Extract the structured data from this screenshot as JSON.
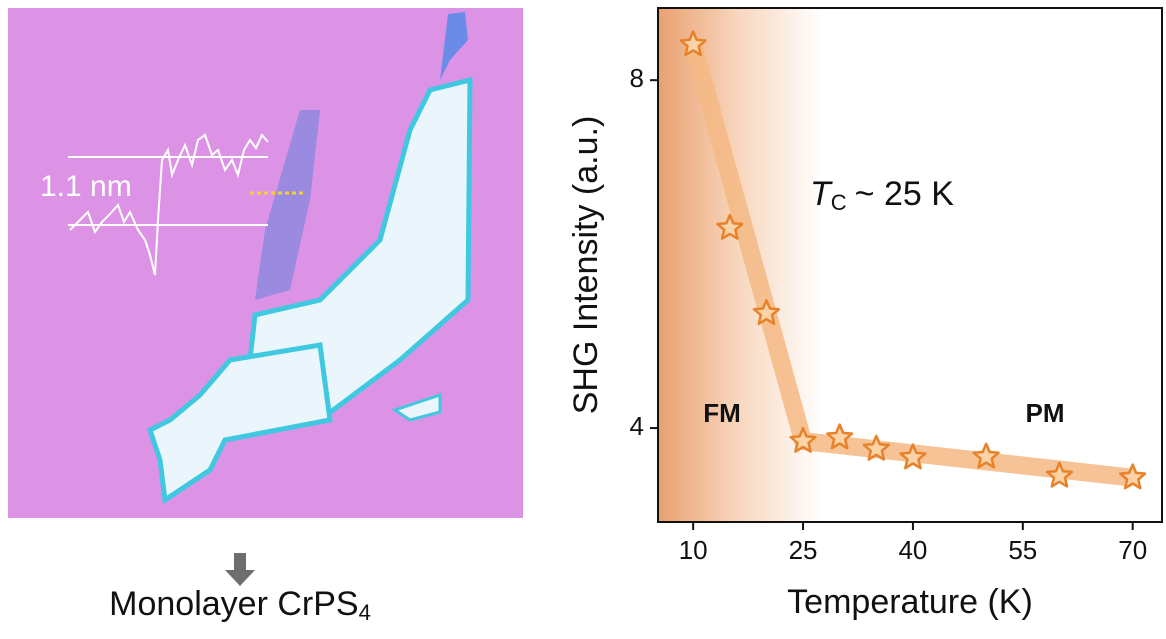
{
  "image_panel": {
    "height_label": "1.1 nm",
    "caption": {
      "text": "Monolayer CrPS",
      "subscript": "4"
    }
  },
  "chart_data": {
    "type": "scatter",
    "x_label": "Temperature (K)",
    "y_label": "SHG Intensity (a.u.)",
    "annotations": {
      "tc": {
        "symbol": "T",
        "subscript": "C",
        "text": "~ 25 K"
      },
      "fm": "FM",
      "pm": "PM"
    },
    "x": [
      10,
      15,
      20,
      25,
      30,
      35,
      40,
      50,
      60,
      70
    ],
    "values": [
      8.41,
      6.3,
      5.32,
      3.85,
      3.89,
      3.76,
      3.66,
      3.67,
      3.45,
      3.43
    ],
    "color": "#e8822a",
    "xlim": [
      5.2,
      74
    ],
    "xticks": [
      10,
      25,
      40,
      55,
      70
    ],
    "ylim": [
      2.92,
      8.83
    ],
    "yticks": [
      4,
      8
    ]
  }
}
